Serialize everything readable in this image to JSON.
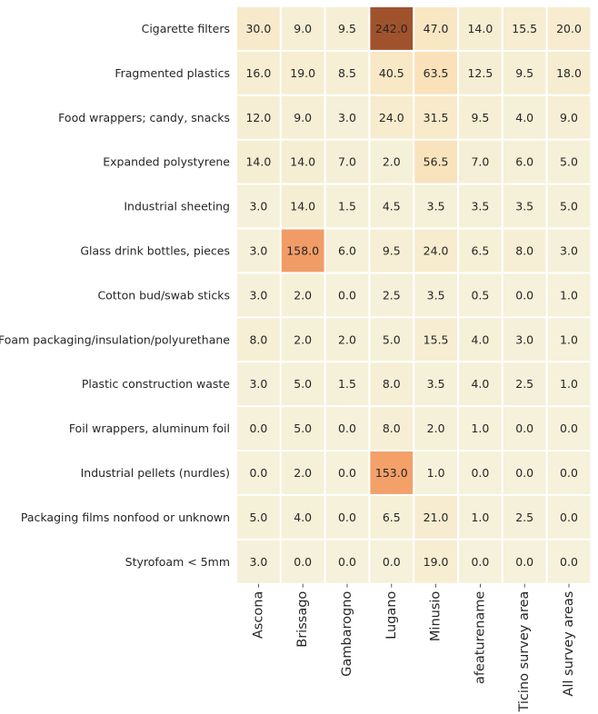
{
  "chart_data": {
    "type": "heatmap",
    "title": "",
    "xlabel": "",
    "ylabel": "",
    "columns": [
      "Ascona",
      "Brissago",
      "Gambarogno",
      "Lugano",
      "Minusio",
      "afeaturename",
      "Ticino survey area",
      "All survey areas"
    ],
    "rows": [
      "Cigarette filters",
      "Fragmented plastics",
      "Food wrappers; candy, snacks",
      "Expanded polystyrene",
      "Industrial sheeting",
      "Glass drink bottles, pieces",
      "Cotton bud/swab sticks",
      "Foam packaging/insulation/polyurethane",
      "Plastic construction waste",
      "Foil wrappers, aluminum foil",
      "Industrial pellets (nurdles)",
      "Packaging films nonfood or unknown",
      "Styrofoam < 5mm"
    ],
    "values": [
      [
        30.0,
        9.0,
        9.5,
        242.0,
        47.0,
        14.0,
        15.5,
        20.0
      ],
      [
        16.0,
        19.0,
        8.5,
        40.5,
        63.5,
        12.5,
        9.5,
        18.0
      ],
      [
        12.0,
        9.0,
        3.0,
        24.0,
        31.5,
        9.5,
        4.0,
        9.0
      ],
      [
        14.0,
        14.0,
        7.0,
        2.0,
        56.5,
        7.0,
        6.0,
        5.0
      ],
      [
        3.0,
        14.0,
        1.5,
        4.5,
        3.5,
        3.5,
        3.5,
        5.0
      ],
      [
        3.0,
        158.0,
        6.0,
        9.5,
        24.0,
        6.5,
        8.0,
        3.0
      ],
      [
        3.0,
        2.0,
        0.0,
        2.5,
        3.5,
        0.5,
        0.0,
        1.0
      ],
      [
        8.0,
        2.0,
        2.0,
        5.0,
        15.5,
        4.0,
        3.0,
        1.0
      ],
      [
        3.0,
        5.0,
        1.5,
        8.0,
        3.5,
        4.0,
        2.5,
        1.0
      ],
      [
        0.0,
        5.0,
        0.0,
        8.0,
        2.0,
        1.0,
        0.0,
        0.0
      ],
      [
        0.0,
        2.0,
        0.0,
        153.0,
        1.0,
        0.0,
        0.0,
        0.0
      ],
      [
        5.0,
        4.0,
        0.0,
        6.5,
        21.0,
        1.0,
        2.5,
        0.0
      ],
      [
        3.0,
        0.0,
        0.0,
        0.0,
        19.0,
        0.0,
        0.0,
        0.0
      ]
    ],
    "value_format": "0.0",
    "color_scale": {
      "min": 0,
      "max": 242,
      "stops": [
        "#f5f1da",
        "#f9e6c2",
        "#fbd6a5",
        "#f6a66e",
        "#e2804f",
        "#a0522d"
      ]
    },
    "grid": false,
    "legend": "none"
  }
}
